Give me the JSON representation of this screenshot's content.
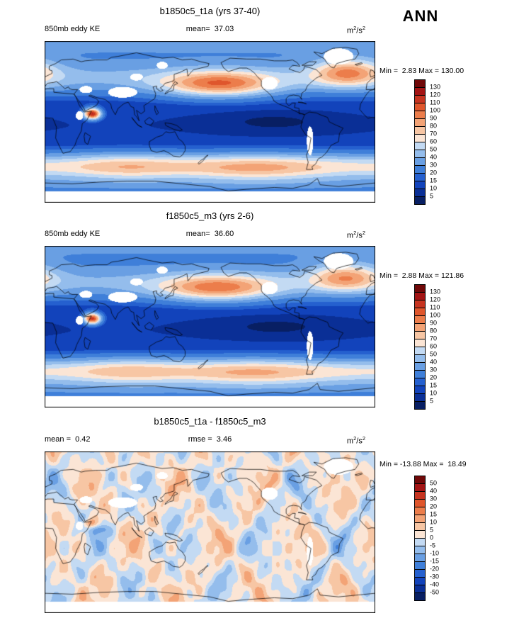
{
  "season_label": "ANN",
  "units_parts": {
    "p1": "m",
    "s1": "2",
    "p2": "/s",
    "s2": "2"
  },
  "chart_data": {
    "type": "heatmap",
    "subtype": "global-latlon-filled-contour-maps",
    "projection": "equirectangular 0-360E, 90S-90N",
    "variable": "850mb eddy KE",
    "season": "ANN",
    "palette": [
      "#081f63",
      "#0a2f96",
      "#1243bb",
      "#2560cf",
      "#3f7fd9",
      "#699fe3",
      "#94bdec",
      "#c3daf3",
      "#fbe5d5",
      "#f7c6a4",
      "#f3a376",
      "#ec7d4b",
      "#df562c",
      "#c63420",
      "#a31414",
      "#700808"
    ],
    "mask_color": "#ffffff",
    "mask_south_of_lat": -77,
    "topo_missing_regions": [
      [
        85,
        33,
        16,
        6
      ],
      [
        320,
        73,
        16,
        9
      ],
      [
        289,
        -21,
        3.5,
        16
      ],
      [
        245,
        43,
        9,
        7
      ],
      [
        45,
        36,
        7,
        4
      ],
      [
        38,
        7,
        4,
        5
      ],
      [
        100,
        50,
        7,
        4
      ],
      [
        128,
        63,
        6,
        4
      ]
    ],
    "panels": [
      {
        "id": "case1",
        "title": "b1850c5_t1a (yrs 37-40)",
        "left_label": "850mb eddy KE",
        "center_label": "mean=  37.03",
        "stats": "Min =  2.83 Max = 130.00",
        "mean": 37.03,
        "min": 2.83,
        "max": 130.0,
        "levels": [
          5,
          10,
          15,
          20,
          30,
          40,
          50,
          60,
          70,
          80,
          90,
          100,
          110,
          120,
          130
        ],
        "colorbar_labels": [
          "130",
          "120",
          "110",
          "100",
          "90",
          "80",
          "70",
          "60",
          "50",
          "40",
          "30",
          "20",
          "15",
          "10",
          "5"
        ],
        "field": {
          "base": 10,
          "gaussians": [
            {
              "amp": 30,
              "lat0": 48,
              "slat": 18
            },
            {
              "amp": 64,
              "lat0": 42,
              "slat": 14,
              "lon0": 190,
              "slon": 60
            },
            {
              "amp": 55,
              "lat0": 55,
              "slat": 15,
              "lon0": 330,
              "slon": 38
            },
            {
              "amp": 50,
              "lat0": -50,
              "slat": 15
            },
            {
              "amp": 20,
              "lat0": -50,
              "slat": 15,
              "lon0": 90,
              "slon": 60
            },
            {
              "amp": 25,
              "lat0": -52,
              "slat": 15,
              "lon0": 230,
              "slon": 75
            },
            {
              "amp": 22,
              "lat0": 90,
              "slat": 28
            },
            {
              "amp": 15,
              "lat0": -72,
              "slat": 10
            },
            {
              "amp": -7,
              "lat0": 0,
              "slat": 10,
              "lon0": 250,
              "slon": 55
            },
            {
              "amp": 110,
              "lat0": 9,
              "slat": 6,
              "lon0": 52,
              "slon": 9
            }
          ]
        }
      },
      {
        "id": "case2",
        "title": "f1850c5_m3 (yrs 2-6)",
        "left_label": "850mb eddy KE",
        "center_label": "mean=  36.60",
        "stats": "Min =  2.88 Max = 121.86",
        "mean": 36.6,
        "min": 2.88,
        "max": 121.86,
        "levels": [
          5,
          10,
          15,
          20,
          30,
          40,
          50,
          60,
          70,
          80,
          90,
          100,
          110,
          120,
          130
        ],
        "colorbar_labels": [
          "130",
          "120",
          "110",
          "100",
          "90",
          "80",
          "70",
          "60",
          "50",
          "40",
          "30",
          "20",
          "15",
          "10",
          "5"
        ],
        "field": {
          "base": 10,
          "gaussians": [
            {
              "amp": 29,
              "lat0": 48,
              "slat": 18
            },
            {
              "amp": 60,
              "lat0": 43,
              "slat": 14,
              "lon0": 188,
              "slon": 62
            },
            {
              "amp": 52,
              "lat0": 55,
              "slat": 15,
              "lon0": 328,
              "slon": 38
            },
            {
              "amp": 49,
              "lat0": -50,
              "slat": 15
            },
            {
              "amp": 19,
              "lat0": -50,
              "slat": 15,
              "lon0": 92,
              "slon": 60
            },
            {
              "amp": 24,
              "lat0": -52,
              "slat": 15,
              "lon0": 228,
              "slon": 75
            },
            {
              "amp": 21,
              "lat0": 90,
              "slat": 28
            },
            {
              "amp": 15,
              "lat0": -72,
              "slat": 10
            },
            {
              "amp": -7,
              "lat0": 0,
              "slat": 10,
              "lon0": 252,
              "slon": 55
            },
            {
              "amp": 103,
              "lat0": 9,
              "slat": 6,
              "lon0": 52,
              "slon": 9
            }
          ]
        }
      },
      {
        "id": "diff",
        "title": "b1850c5_t1a - f1850c5_m3",
        "left_label": "mean =  0.42",
        "center_label": "rmse =  3.46",
        "stats": "Min = -13.88 Max =  18.49",
        "mean": 0.42,
        "rmse": 3.46,
        "min": -13.88,
        "max": 18.49,
        "levels": [
          -50,
          -40,
          -30,
          -20,
          -15,
          -10,
          -5,
          0,
          5,
          10,
          15,
          20,
          30,
          40,
          50
        ],
        "colorbar_labels": [
          "50",
          "40",
          "30",
          "20",
          "15",
          "10",
          "5",
          "0",
          "-5",
          "-10",
          "-15",
          "-20",
          "-30",
          "-40",
          "-50"
        ],
        "field": {
          "base": 1.0,
          "noise": [
            {
              "amp": 6.5,
              "kx": 4,
              "px": 1.0,
              "ky": 3,
              "py": 0.5
            },
            {
              "amp": 5.0,
              "kx": 7,
              "px": 3.0,
              "ky": 5,
              "py": 1.2
            },
            {
              "amp": 4.0,
              "kx": 11,
              "px": 0.3,
              "ky": 7,
              "py": 2.0
            },
            {
              "amp": 3.0,
              "kx": 17,
              "px": 1.7,
              "ky": 11,
              "py": 0.4
            }
          ],
          "gaussians": [
            {
              "amp": 14,
              "lat0": 10,
              "slat": 5,
              "lon0": 48,
              "slon": 8
            },
            {
              "amp": -12,
              "lat0": 3,
              "slat": 5,
              "lon0": 60,
              "slon": 9
            }
          ]
        }
      }
    ]
  }
}
